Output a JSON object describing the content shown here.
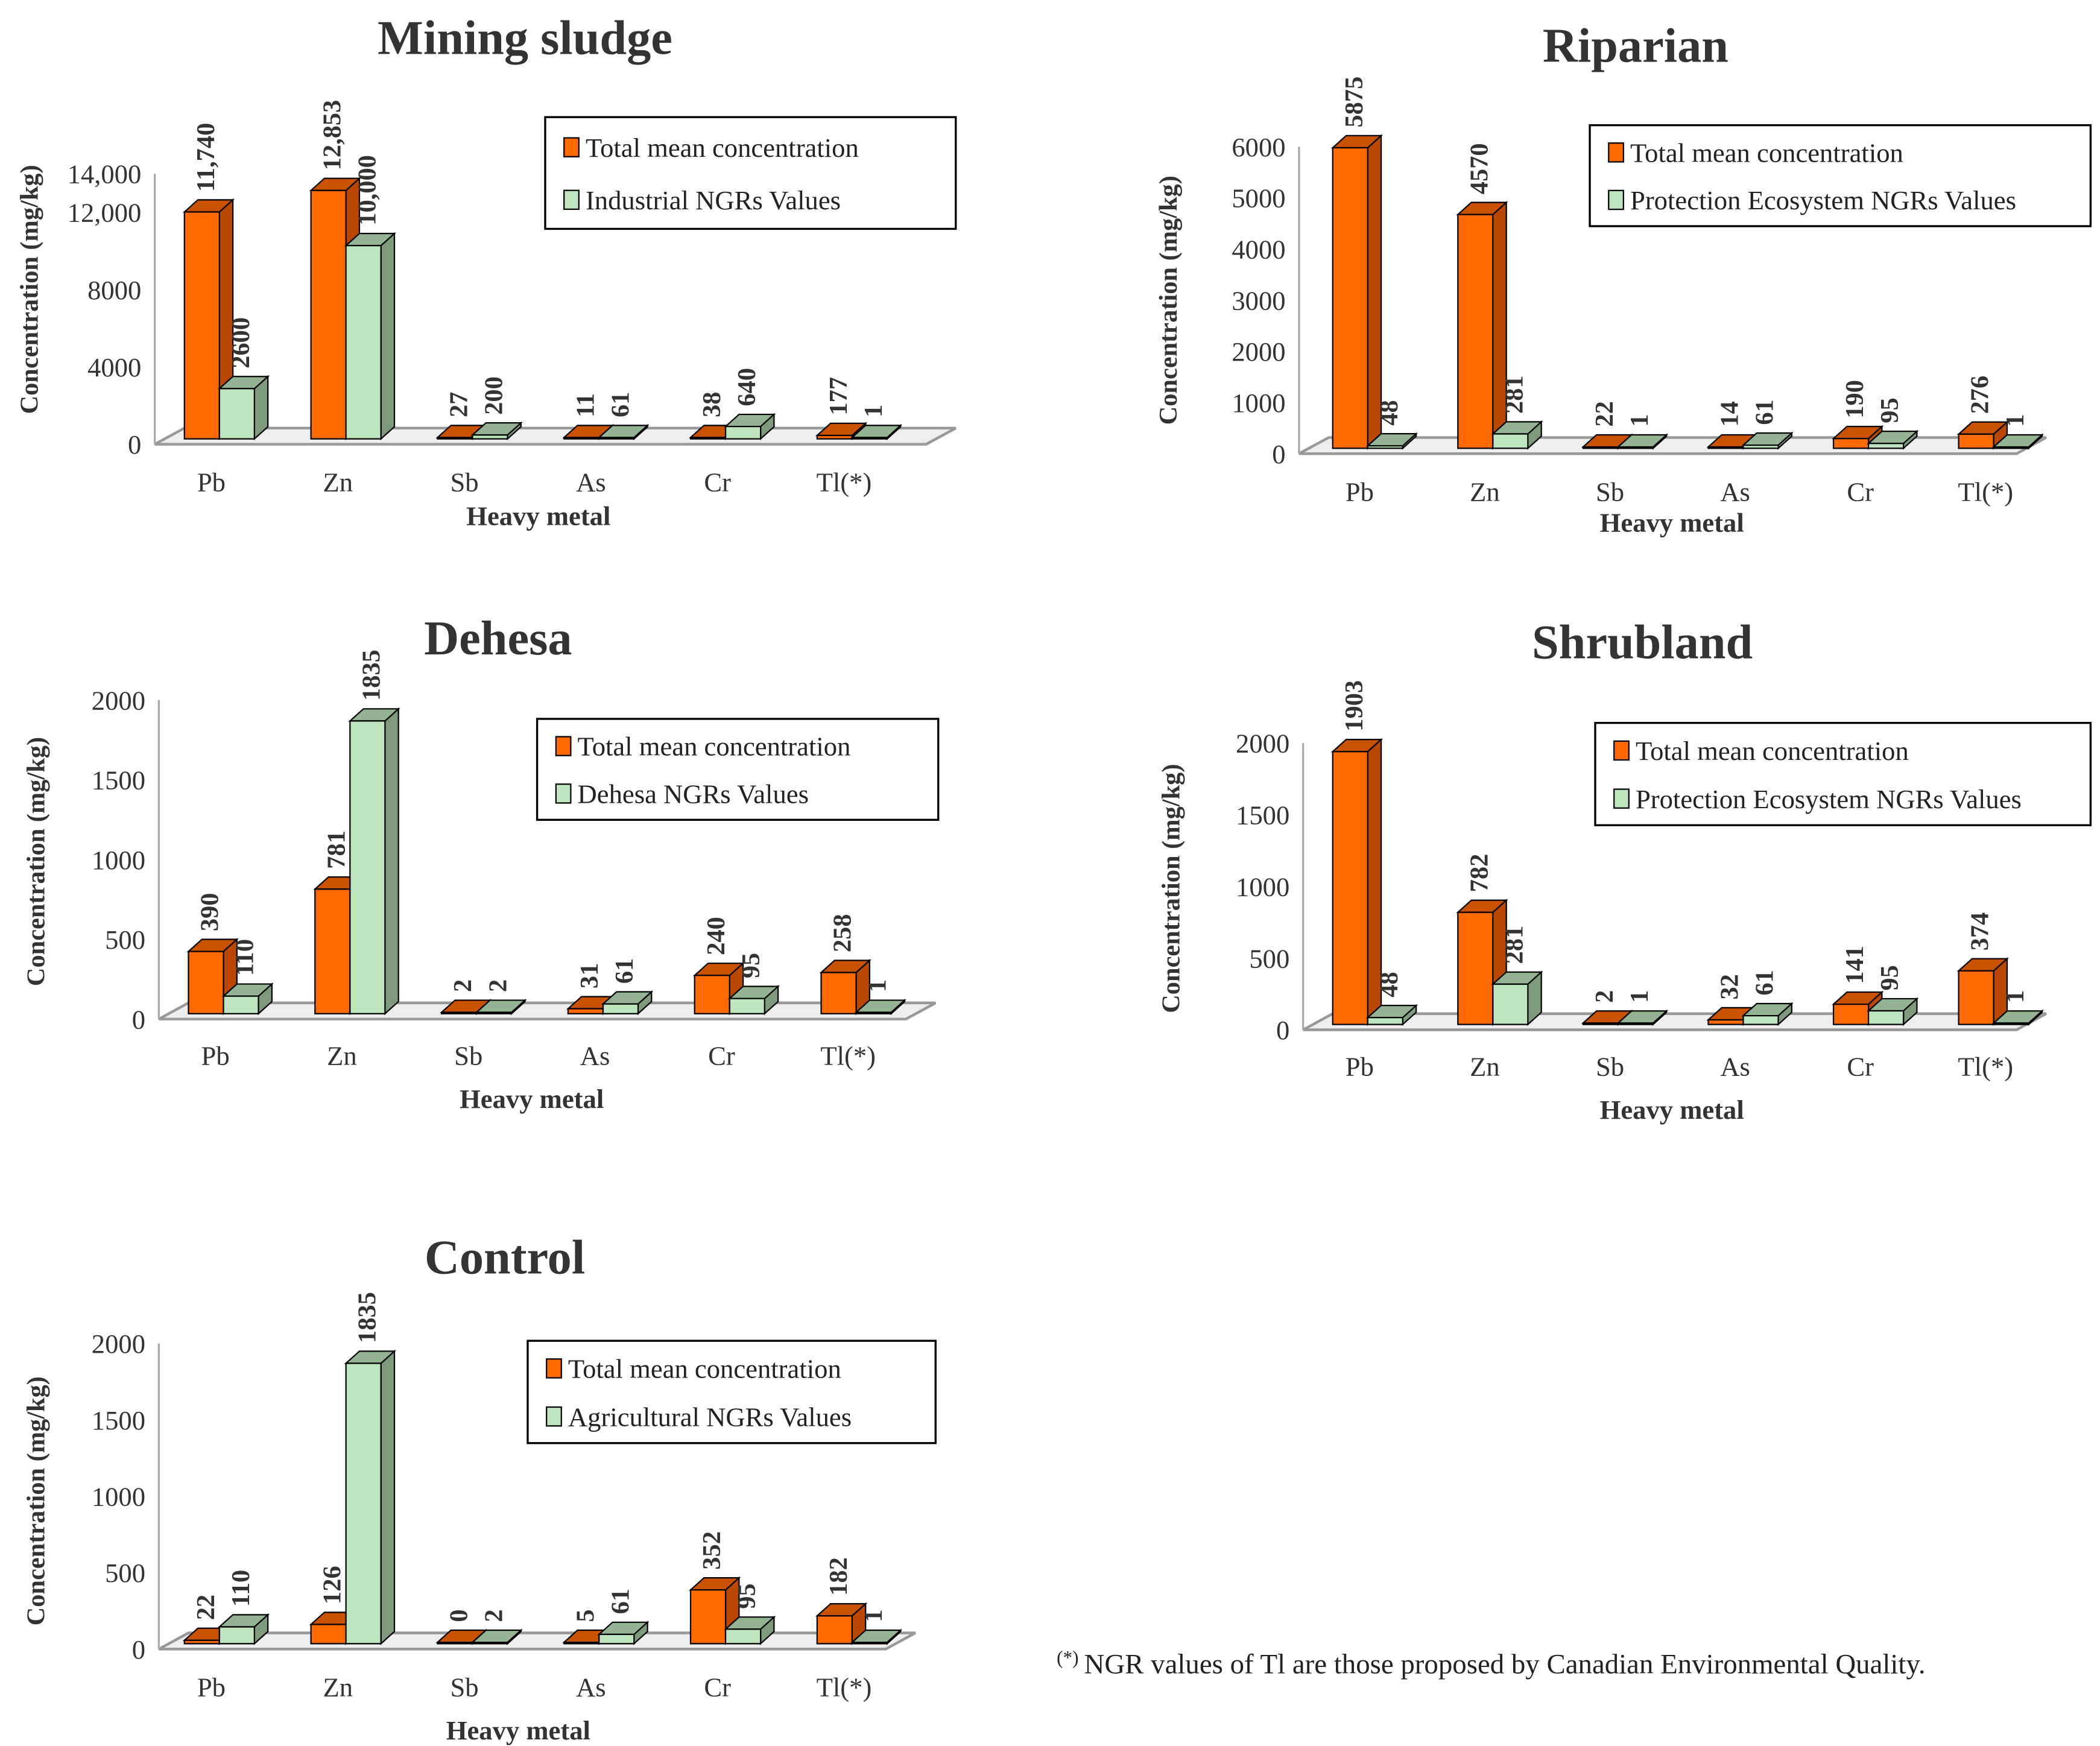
{
  "colors": {
    "total_front": "#ff6a00",
    "total_side": "#b94700",
    "total_top": "#c95200",
    "ngr_front": "#bfe5bf",
    "ngr_side": "#7d9a7d",
    "ngr_top": "#93b393",
    "floor": "#eeeeee",
    "floor_stroke": "#999999"
  },
  "footnote": {
    "marker": "(*)",
    "text": "NGR values of Tl are those proposed by Canadian Environmental Quality."
  },
  "chart_data": [
    {
      "type": "bar",
      "title": "Mining sludge",
      "xlabel": "Heavy metal",
      "ylabel": "Concentration (mg/kg)",
      "ylim": [
        0,
        14000
      ],
      "yticks": [
        {
          "value": 0,
          "label": "0"
        },
        {
          "value": 4000,
          "label": "4000"
        },
        {
          "value": 8000,
          "label": "8000"
        },
        {
          "value": 12000,
          "label": "12,000"
        },
        {
          "value": 14000,
          "label": "14,000"
        }
      ],
      "categories": [
        "Pb",
        "Zn",
        "Sb",
        "As",
        "Cr",
        "Tl(*)"
      ],
      "series": [
        {
          "name": "Total mean concentration",
          "values": [
            11740,
            12853,
            27,
            11,
            38,
            177
          ],
          "labels": [
            "11,740",
            "12,853",
            "27",
            "11",
            "38",
            "177"
          ]
        },
        {
          "name": "Industrial NGRs Values",
          "values": [
            2600,
            10000,
            200,
            61,
            640,
            1
          ],
          "labels": [
            "2600",
            "10,000",
            "200",
            "61",
            "640",
            "1"
          ]
        }
      ],
      "legend": "top-right"
    },
    {
      "type": "bar",
      "title": "Riparian",
      "xlabel": "Heavy metal",
      "ylabel": "Concentration (mg/kg)",
      "ylim": [
        0,
        6000
      ],
      "yticks": [
        {
          "value": 0,
          "label": "0"
        },
        {
          "value": 1000,
          "label": "1000"
        },
        {
          "value": 2000,
          "label": "2000"
        },
        {
          "value": 3000,
          "label": "3000"
        },
        {
          "value": 4000,
          "label": "4000"
        },
        {
          "value": 5000,
          "label": "5000"
        },
        {
          "value": 6000,
          "label": "6000"
        }
      ],
      "categories": [
        "Pb",
        "Zn",
        "Sb",
        "As",
        "Cr",
        "Tl(*)"
      ],
      "series": [
        {
          "name": "Total mean concentration",
          "values": [
            5875,
            4570,
            22,
            14,
            190,
            276
          ],
          "labels": [
            "5875",
            "4570",
            "22",
            "14",
            "190",
            "276"
          ]
        },
        {
          "name": "Protection Ecosystem NGRs Values",
          "values": [
            48,
            281,
            1,
            61,
            95,
            1
          ],
          "labels": [
            "48",
            "281",
            "1",
            "61",
            "95",
            "1"
          ]
        }
      ],
      "legend": "top-right"
    },
    {
      "type": "bar",
      "title": "Dehesa",
      "xlabel": "Heavy metal",
      "ylabel": "Concentration (mg/kg)",
      "ylim": [
        0,
        2000
      ],
      "yticks": [
        {
          "value": 0,
          "label": "0"
        },
        {
          "value": 500,
          "label": "500"
        },
        {
          "value": 1000,
          "label": "1000"
        },
        {
          "value": 1500,
          "label": "1500"
        },
        {
          "value": 2000,
          "label": "2000"
        }
      ],
      "categories": [
        "Pb",
        "Zn",
        "Sb",
        "As",
        "Cr",
        "Tl(*)"
      ],
      "series": [
        {
          "name": "Total mean concentration",
          "values": [
            390,
            781,
            2,
            31,
            240,
            258
          ],
          "labels": [
            "390",
            "781",
            "2",
            "31",
            "240",
            "258"
          ]
        },
        {
          "name": "Dehesa NGRs Values",
          "values": [
            110,
            1835,
            2,
            61,
            95,
            1
          ],
          "labels": [
            "110",
            "1835",
            "2",
            "61",
            "95",
            "1"
          ]
        }
      ],
      "legend": "top-right"
    },
    {
      "type": "bar",
      "title": "Shrubland",
      "xlabel": "Heavy metal",
      "ylabel": "Concentration (mg/kg)",
      "ylim": [
        0,
        2000
      ],
      "yticks": [
        {
          "value": 0,
          "label": "0"
        },
        {
          "value": 500,
          "label": "500"
        },
        {
          "value": 1000,
          "label": "1000"
        },
        {
          "value": 1500,
          "label": "1500"
        },
        {
          "value": 2000,
          "label": "2000"
        }
      ],
      "categories": [
        "Pb",
        "Zn",
        "Sb",
        "As",
        "Cr",
        "Tl(*)"
      ],
      "series": [
        {
          "name": "Total mean concentration",
          "values": [
            1903,
            782,
            2,
            32,
            141,
            374
          ],
          "labels": [
            "1903",
            "782",
            "2",
            "32",
            "141",
            "374"
          ]
        },
        {
          "name": "Protection Ecosystem NGRs Values",
          "values": [
            48,
            281,
            1,
            61,
            95,
            1
          ],
          "labels": [
            "48",
            "281",
            "1",
            "61",
            "95",
            "1"
          ]
        }
      ],
      "legend": "top-right"
    },
    {
      "type": "bar",
      "title": "Control",
      "xlabel": "Heavy metal",
      "ylabel": "Concentration (mg/kg)",
      "ylim": [
        0,
        2000
      ],
      "yticks": [
        {
          "value": 0,
          "label": "0"
        },
        {
          "value": 500,
          "label": "500"
        },
        {
          "value": 1000,
          "label": "1000"
        },
        {
          "value": 1500,
          "label": "1500"
        },
        {
          "value": 2000,
          "label": "2000"
        }
      ],
      "categories": [
        "Pb",
        "Zn",
        "Sb",
        "As",
        "Cr",
        "Tl(*)"
      ],
      "series": [
        {
          "name": "Total mean concentration",
          "values": [
            22,
            126,
            0,
            5,
            352,
            182
          ],
          "labels": [
            "22",
            "126",
            "0",
            "5",
            "352",
            "182"
          ]
        },
        {
          "name": "Agricultural NGRs Values",
          "values": [
            110,
            1835,
            2,
            61,
            95,
            1
          ],
          "labels": [
            "110",
            "1835",
            "2",
            "61",
            "95",
            "1"
          ]
        }
      ],
      "legend": "top-right"
    }
  ]
}
